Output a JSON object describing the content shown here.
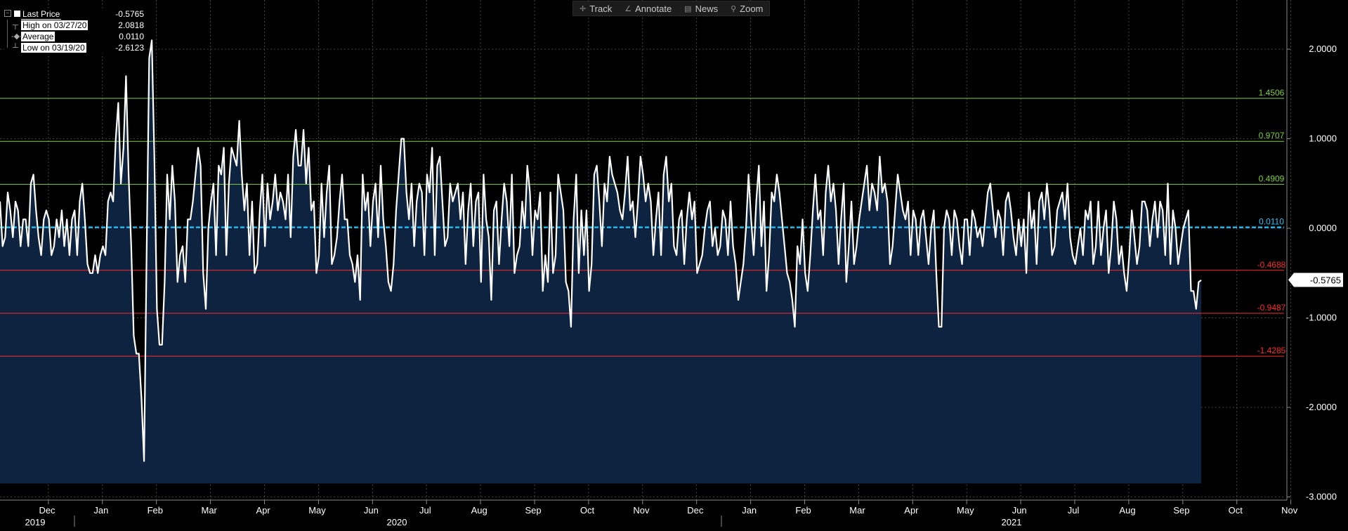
{
  "toolbar": {
    "items": [
      {
        "label": "Track",
        "icon": "crosshair-icon"
      },
      {
        "label": "Annotate",
        "icon": "pencil-icon"
      },
      {
        "label": "News",
        "icon": "news-icon"
      },
      {
        "label": "Zoom",
        "icon": "magnifier-icon"
      }
    ]
  },
  "legend": {
    "rows": [
      {
        "label": "Last Price",
        "value": "-0.5765"
      },
      {
        "label": "High on 03/27/20",
        "value": "2.0818"
      },
      {
        "label": "Average",
        "value": "0.0110"
      },
      {
        "label": "Low on 03/19/20",
        "value": "-2.6123"
      }
    ]
  },
  "colors": {
    "background": "#000000",
    "area_fill": "#0d2340",
    "line": "#ffffff",
    "upper_band": "#7fd13b",
    "lower_band": "#ff2a2a",
    "average": "#1ec8ff",
    "grid": "#555555"
  },
  "chart_data": {
    "type": "area",
    "ylim": [
      -3.0,
      2.5
    ],
    "yticks": [
      "2.0000",
      "1.0000",
      "0.0000",
      "-1.0000",
      "-2.0000",
      "-3.0000"
    ],
    "last_price_label": "-0.5765",
    "reference_lines": [
      {
        "label": "1.4506",
        "value": 1.4506,
        "kind": "upper"
      },
      {
        "label": "0.9707",
        "value": 0.9707,
        "kind": "upper"
      },
      {
        "label": "0.4909",
        "value": 0.4909,
        "kind": "upper"
      },
      {
        "label": "0.0110",
        "value": 0.011,
        "kind": "average"
      },
      {
        "label": "-0.4688",
        "value": -0.4688,
        "kind": "lower"
      },
      {
        "label": "-0.9487",
        "value": -0.9487,
        "kind": "lower"
      },
      {
        "label": "-1.4285",
        "value": -1.4285,
        "kind": "lower"
      }
    ],
    "months": [
      "Dec",
      "Jan",
      "Feb",
      "Mar",
      "Apr",
      "May",
      "Jun",
      "Jul",
      "Aug",
      "Sep",
      "Oct",
      "Nov",
      "Dec",
      "Jan",
      "Feb",
      "Mar",
      "Apr",
      "May",
      "Jun",
      "Jul",
      "Aug",
      "Sep",
      "Oct",
      "Nov"
    ],
    "years": [
      "2019",
      "2020",
      "2021"
    ],
    "points_per_month": 21,
    "values": [
      0.3,
      -0.2,
      -0.1,
      0.4,
      0.2,
      -0.1,
      0.3,
      0.2,
      -0.2,
      0.1,
      0.1,
      -0.2,
      0.5,
      0.6,
      0.2,
      -0.1,
      -0.3,
      0.1,
      0.2,
      0.1,
      -0.3,
      -0.2,
      0.1,
      -0.1,
      0.2,
      -0.2,
      0.1,
      -0.3,
      0.1,
      0.2,
      -0.3,
      0.3,
      0.5,
      0.1,
      -0.4,
      -0.5,
      -0.5,
      -0.3,
      -0.5,
      -0.3,
      -0.2,
      -0.3,
      0.3,
      0.4,
      0.3,
      1.0,
      1.4,
      0.5,
      0.9,
      1.7,
      0.6,
      -0.2,
      -1.2,
      -1.4,
      -1.4,
      -1.9,
      -2.6,
      -0.3,
      1.9,
      2.1,
      0.8,
      -0.9,
      -1.3,
      -1.3,
      -0.6,
      0.6,
      0.1,
      0.7,
      0.3,
      -0.6,
      -0.3,
      -0.2,
      -0.6,
      0.1,
      0.1,
      0.3,
      0.6,
      0.9,
      0.7,
      -0.5,
      -0.9,
      0.0,
      0.3,
      0.5,
      -0.3,
      0.7,
      0.6,
      0.9,
      -0.3,
      0.5,
      0.9,
      0.8,
      0.7,
      1.2,
      0.6,
      0.2,
      0.5,
      -0.3,
      0.3,
      -0.5,
      -0.4,
      0.2,
      0.6,
      -0.2,
      0.5,
      0.1,
      0.3,
      0.6,
      0.2,
      0.4,
      0.3,
      0.1,
      0.6,
      -0.1,
      0.8,
      1.1,
      0.7,
      0.7,
      1.1,
      0.5,
      0.9,
      0.2,
      0.3,
      -0.5,
      -0.3,
      0.5,
      -0.1,
      0.4,
      0.7,
      -0.4,
      -0.3,
      -0.1,
      0.3,
      0.6,
      0.1,
      0.1,
      -0.3,
      -0.4,
      -0.6,
      -0.3,
      -0.8,
      0.6,
      0.2,
      0.4,
      -0.2,
      0.3,
      0.5,
      -0.1,
      0.7,
      0.1,
      -0.2,
      -0.6,
      -0.7,
      -0.4,
      0.2,
      0.6,
      1.0,
      1.0,
      0.4,
      0.1,
      0.5,
      -0.2,
      0.3,
      0.5,
      0.4,
      -0.3,
      0.6,
      0.4,
      0.9,
      -0.3,
      0.7,
      0.8,
      0.3,
      -0.2,
      -0.1,
      0.5,
      0.3,
      0.4,
      0.5,
      0.1,
      0.4,
      -0.4,
      0.2,
      0.5,
      -0.2,
      0.3,
      0.4,
      -0.6,
      0.6,
      0.1,
      -0.1,
      -0.8,
      0.2,
      0.3,
      -0.4,
      0.1,
      0.5,
      0.3,
      -0.2,
      0.6,
      -0.5,
      -0.3,
      -0.2,
      0.3,
      0.0,
      0.7,
      0.4,
      -0.3,
      0.2,
      0.1,
      0.4,
      -0.7,
      -0.3,
      -0.6,
      0.4,
      -0.5,
      -0.3,
      0.6,
      0.4,
      0.2,
      -0.6,
      -0.7,
      -1.1,
      0.1,
      0.6,
      -0.5,
      0.2,
      -0.3,
      0.2,
      -0.7,
      -0.4,
      0.6,
      0.7,
      0.3,
      -0.2,
      0.5,
      0.3,
      0.8,
      0.6,
      0.5,
      0.4,
      0.2,
      0.1,
      0.4,
      0.8,
      0.2,
      0.3,
      -0.1,
      0.3,
      0.8,
      0.6,
      0.3,
      0.5,
      0.3,
      -0.3,
      0.1,
      0.4,
      -0.3,
      0.6,
      0.8,
      0.3,
      0.5,
      -0.2,
      -0.3,
      0.1,
      0.2,
      -0.4,
      0.1,
      0.4,
      0.1,
      0.3,
      -0.5,
      -0.4,
      -0.3,
      0.0,
      0.2,
      0.3,
      -0.2,
      0.0,
      -0.3,
      -0.2,
      0.2,
      0.1,
      -0.3,
      0.3,
      -0.2,
      -0.4,
      -0.8,
      -0.6,
      -0.4,
      0.0,
      0.6,
      0.1,
      -0.3,
      0.3,
      0.7,
      -0.2,
      0.3,
      -0.7,
      -0.3,
      0.4,
      0.3,
      0.6,
      0.4,
      0.1,
      -0.2,
      -0.5,
      -0.6,
      -0.8,
      -1.1,
      -0.2,
      -0.4,
      0.1,
      -0.5,
      -0.7,
      -0.3,
      0.2,
      0.6,
      0.1,
      0.2,
      -0.3,
      0.4,
      0.7,
      0.3,
      0.5,
      0.2,
      -0.4,
      0.1,
      0.5,
      -0.6,
      -0.2,
      0.3,
      -0.4,
      -0.2,
      0.1,
      0.3,
      0.5,
      0.7,
      0.2,
      0.5,
      0.4,
      0.2,
      0.8,
      0.4,
      0.5,
      0.3,
      -0.4,
      -0.2,
      0.2,
      0.6,
      0.4,
      0.2,
      0.1,
      0.3,
      -0.3,
      0.2,
      0.1,
      -0.3,
      0.1,
      0.2,
      -0.1,
      -0.4,
      0.0,
      0.2,
      -0.5,
      -1.1,
      -1.1,
      0.0,
      0.2,
      0.1,
      -0.3,
      0.2,
      0.1,
      -0.2,
      -0.4,
      0.1,
      0.1,
      -0.3,
      0.2,
      0.1,
      -0.1,
      0.0,
      -0.2,
      0.1,
      0.4,
      0.5,
      0.2,
      -0.1,
      0.2,
      0.1,
      -0.3,
      0.3,
      0.4,
      0.2,
      -0.1,
      -0.3,
      0.1,
      -0.2,
      0.1,
      -0.5,
      0.4,
      0.0,
      0.2,
      -0.4,
      0.3,
      0.4,
      0.1,
      0.5,
      0.2,
      -0.3,
      -0.2,
      0.2,
      0.3,
      0.4,
      0.1,
      0.5,
      -0.1,
      -0.3,
      -0.4,
      -0.2,
      0.0,
      -0.3,
      0.2,
      0.1,
      0.3,
      -0.4,
      -0.2,
      0.3,
      -0.3,
      0.0,
      0.2,
      -0.5,
      -0.2,
      0.3,
      0.1,
      -0.4,
      -0.2,
      -0.5,
      -0.7,
      -0.3,
      0.2,
      -0.1,
      -0.4,
      -0.2,
      0.3,
      0.3,
      0.2,
      -0.2,
      0.1,
      0.3,
      -0.1,
      0.3,
      0.2,
      -0.3,
      0.5,
      -0.4,
      0.2,
      0.0,
      -0.4,
      -0.2,
      0.0,
      0.1,
      0.2,
      -0.7,
      -0.7,
      -0.9,
      -0.6,
      -0.58
    ]
  }
}
